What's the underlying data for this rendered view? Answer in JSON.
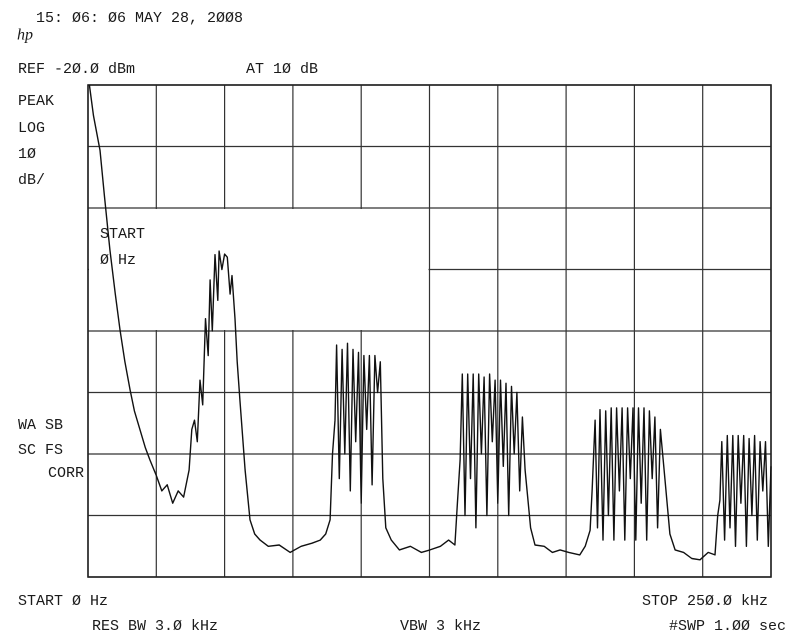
{
  "chart_data": {
    "type": "line",
    "timestamp": "15: Ø6: Ø6 MAY 28, 2ØØ8",
    "logo": "hp",
    "ref_level": "REF -2Ø.Ø dBm",
    "attenuation": "AT 1Ø dB",
    "left_labels": [
      "PEAK",
      "LOG",
      "1Ø",
      "dB/"
    ],
    "start_box": [
      "START",
      "Ø Hz"
    ],
    "status_labels": [
      "WA SB",
      "SC FS",
      "CORR"
    ],
    "start_label": "START Ø Hz",
    "stop_label": "STOP 25Ø.Ø kHz",
    "rbw": "RES BW 3.Ø kHz",
    "vbw": "VBW 3 kHz",
    "sweep": "#SWP 1.ØØ sec",
    "xlim": [
      0,
      250
    ],
    "ylim": [
      -100,
      -20
    ],
    "xticks": [
      0,
      25,
      50,
      75,
      100,
      125,
      150,
      175,
      200,
      225,
      250
    ],
    "yticks": [
      -100,
      -90,
      -80,
      -70,
      -60,
      -50,
      -40,
      -30,
      -20
    ],
    "grid": true,
    "x": [
      0.5,
      2,
      4.4,
      6,
      8,
      10,
      11.7,
      13.5,
      15.4,
      17,
      19,
      21,
      22.7,
      25,
      27,
      29,
      31,
      33,
      35,
      37,
      38,
      39,
      40,
      41,
      42,
      43,
      44,
      44.7,
      45.5,
      46.5,
      47.5,
      48,
      49,
      50,
      51,
      52,
      52.7,
      53.8,
      54.6,
      55.6,
      57.5,
      59.3,
      61,
      63,
      66,
      70,
      74,
      78,
      82,
      85,
      87,
      88.6,
      89.5,
      90.4,
      91,
      92,
      93,
      94,
      95,
      96,
      97,
      98,
      99,
      100,
      101,
      102,
      103,
      104,
      105,
      106,
      107,
      107.9,
      109,
      111,
      114,
      118,
      122,
      125.2,
      129,
      132,
      134.3,
      135.2,
      136.2,
      137,
      138,
      139,
      140,
      141,
      142,
      143,
      144,
      145,
      146,
      147,
      148,
      149,
      150,
      151,
      152,
      153,
      154,
      155,
      156,
      157,
      158,
      159,
      160,
      162,
      163.6,
      167,
      170,
      172.8,
      176,
      180,
      182,
      183.8,
      184.5,
      185.6,
      186.5,
      187.4,
      188.5,
      189.5,
      190.5,
      191.5,
      192.5,
      193.5,
      194.5,
      195.5,
      196.5,
      197.5,
      198.5,
      199.5,
      200.5,
      201.5,
      202.5,
      203.5,
      204.5,
      205.5,
      206.5,
      207.5,
      208.5,
      209.5,
      211.2,
      213,
      214.9,
      218,
      221,
      224,
      227,
      229.5,
      230.5,
      231.3,
      232,
      233,
      234,
      235,
      236,
      237,
      238,
      239,
      240,
      241,
      242,
      243,
      244,
      245,
      246,
      247,
      248,
      249,
      250
    ],
    "series": [
      {
        "color": "#111111",
        "values": [
          -20,
          -25,
          -30.6,
          -38,
          -46.8,
          -54,
          -59.8,
          -65,
          -69.6,
          -73,
          -76,
          -79,
          -81,
          -83.5,
          -86,
          -85,
          -88,
          -86,
          -87,
          -82.6,
          -76,
          -74.5,
          -78,
          -68,
          -72,
          -58,
          -64,
          -51.7,
          -60,
          -47.6,
          -55,
          -47,
          -50,
          -47.5,
          -48,
          -54,
          -51,
          -58,
          -65,
          -71.2,
          -82.6,
          -90.7,
          -93,
          -94,
          -95,
          -94.8,
          -96,
          -95,
          -94.5,
          -94,
          -93,
          -90.7,
          -80,
          -74.5,
          -62.3,
          -84,
          -63,
          -80,
          -62,
          -86,
          -63,
          -78,
          -63.5,
          -88,
          -64,
          -76,
          -64,
          -85,
          -64,
          -70,
          -65,
          -84,
          -92,
          -94,
          -95.6,
          -95,
          -96,
          -95.6,
          -95,
          -94,
          -94.8,
          -88,
          -81,
          -67,
          -90,
          -67,
          -84,
          -67,
          -92,
          -67,
          -80,
          -67.5,
          -90,
          -67,
          -78,
          -68,
          -88,
          -68,
          -82,
          -68.5,
          -90,
          -69,
          -80,
          -70,
          -86,
          -74,
          -82.6,
          -92,
          -94.8,
          -95,
          -96,
          -95.6,
          -96,
          -96.4,
          -95,
          -92.4,
          -86,
          -74.5,
          -92,
          -72.8,
          -94,
          -73,
          -90,
          -72.5,
          -94,
          -72.5,
          -86,
          -72.5,
          -94,
          -72.5,
          -84,
          -72.5,
          -94,
          -72.5,
          -88,
          -72.5,
          -94,
          -73,
          -84,
          -74,
          -92,
          -76,
          -84.2,
          -93,
          -95.6,
          -96,
          -97,
          -97.2,
          -96,
          -96.4,
          -90,
          -87.5,
          -78,
          -94,
          -77,
          -92,
          -77,
          -95,
          -77,
          -88,
          -77,
          -95,
          -77.5,
          -90,
          -77,
          -94,
          -78,
          -86,
          -78,
          -95,
          -82
        ]
      }
    ]
  }
}
